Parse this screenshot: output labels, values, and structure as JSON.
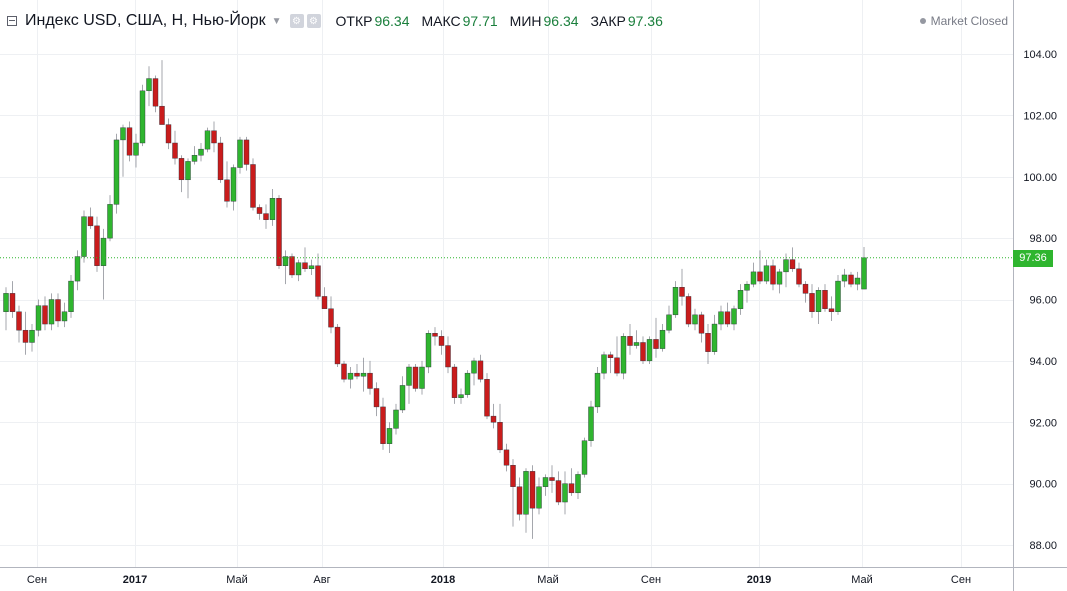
{
  "header": {
    "title": "Индекс USD, США, H, Нью-Йорк",
    "ohlc": [
      {
        "label": "ОТКР",
        "value": "96.34"
      },
      {
        "label": "МАКС",
        "value": "97.71"
      },
      {
        "label": "МИН",
        "value": "96.34"
      },
      {
        "label": "ЗАКР",
        "value": "97.36"
      }
    ],
    "icons": [
      "gear-icon",
      "settings-icon"
    ],
    "market_status": "Market Closed"
  },
  "colors": {
    "up": "#2fb52f",
    "down": "#c91c1c",
    "wick": "#5d606b",
    "grid": "#eef0f3",
    "axis_text": "#131722",
    "last_price_line": "#2fb52f"
  },
  "chart_data": {
    "type": "candlestick",
    "title": "Индекс USD, США, H, Нью-Йорк",
    "last_price": {
      "value": 97.36,
      "label": "97.36"
    },
    "y_ticks": [
      "88.00",
      "90.00",
      "92.00",
      "94.00",
      "96.00",
      "98.00",
      "100.00",
      "102.00",
      "104.00"
    ],
    "x_ticks": [
      {
        "label": "Сен",
        "bold": false
      },
      {
        "label": "2017",
        "bold": true
      },
      {
        "label": "Май",
        "bold": false
      },
      {
        "label": "Авг",
        "bold": false
      },
      {
        "label": "2018",
        "bold": true
      },
      {
        "label": "Май",
        "bold": false
      },
      {
        "label": "Сен",
        "bold": false
      },
      {
        "label": "2019",
        "bold": true
      },
      {
        "label": "Май",
        "bold": false
      },
      {
        "label": "Сен",
        "bold": false
      }
    ],
    "grid": true,
    "candles_ohlc": [
      [
        95.6,
        96.4,
        95.0,
        96.2
      ],
      [
        96.2,
        96.6,
        95.4,
        95.6
      ],
      [
        95.6,
        95.8,
        94.6,
        95.0
      ],
      [
        95.0,
        95.6,
        94.2,
        94.6
      ],
      [
        94.6,
        95.2,
        94.3,
        95.0
      ],
      [
        95.0,
        96.0,
        94.8,
        95.8
      ],
      [
        95.8,
        96.1,
        95.0,
        95.2
      ],
      [
        95.2,
        96.2,
        95.0,
        96.0
      ],
      [
        96.0,
        96.2,
        95.1,
        95.3
      ],
      [
        95.3,
        95.9,
        95.1,
        95.6
      ],
      [
        95.6,
        96.8,
        95.4,
        96.6
      ],
      [
        96.6,
        97.6,
        96.3,
        97.4
      ],
      [
        97.4,
        98.9,
        97.2,
        98.7
      ],
      [
        98.7,
        99.0,
        98.3,
        98.4
      ],
      [
        98.4,
        98.7,
        96.9,
        97.1
      ],
      [
        97.1,
        98.3,
        96.0,
        98.0
      ],
      [
        98.0,
        99.4,
        97.9,
        99.1
      ],
      [
        99.1,
        101.4,
        98.8,
        101.2
      ],
      [
        101.2,
        101.7,
        100.0,
        101.6
      ],
      [
        101.6,
        101.8,
        100.5,
        100.7
      ],
      [
        100.7,
        101.4,
        100.3,
        101.1
      ],
      [
        101.1,
        103.0,
        101.0,
        102.8
      ],
      [
        102.8,
        103.6,
        102.3,
        103.2
      ],
      [
        103.2,
        103.3,
        102.1,
        102.3
      ],
      [
        102.3,
        103.8,
        101.8,
        101.7
      ],
      [
        101.7,
        101.9,
        100.9,
        101.1
      ],
      [
        101.1,
        101.5,
        100.4,
        100.6
      ],
      [
        100.6,
        100.7,
        99.5,
        99.9
      ],
      [
        99.9,
        100.6,
        99.3,
        100.5
      ],
      [
        100.5,
        101.0,
        100.4,
        100.7
      ],
      [
        100.7,
        101.1,
        100.5,
        100.9
      ],
      [
        100.9,
        101.6,
        100.8,
        101.5
      ],
      [
        101.5,
        101.8,
        100.8,
        101.1
      ],
      [
        101.1,
        101.3,
        99.8,
        99.9
      ],
      [
        99.9,
        100.5,
        99.0,
        99.2
      ],
      [
        99.2,
        100.4,
        98.9,
        100.3
      ],
      [
        100.3,
        101.3,
        100.1,
        101.2
      ],
      [
        101.2,
        101.3,
        100.2,
        100.4
      ],
      [
        100.4,
        100.6,
        98.9,
        99.0
      ],
      [
        99.0,
        99.1,
        98.6,
        98.8
      ],
      [
        98.8,
        99.1,
        98.3,
        98.6
      ],
      [
        98.6,
        99.6,
        98.4,
        99.3
      ],
      [
        99.3,
        99.4,
        97.0,
        97.1
      ],
      [
        97.1,
        97.6,
        96.5,
        97.4
      ],
      [
        97.4,
        97.5,
        96.7,
        96.8
      ],
      [
        96.8,
        97.3,
        96.6,
        97.2
      ],
      [
        97.2,
        97.7,
        96.9,
        97.0
      ],
      [
        97.0,
        97.3,
        96.8,
        97.1
      ],
      [
        97.1,
        97.5,
        96.0,
        96.1
      ],
      [
        96.1,
        96.4,
        95.8,
        95.7
      ],
      [
        95.7,
        96.1,
        94.9,
        95.1
      ],
      [
        95.1,
        95.2,
        93.8,
        93.9
      ],
      [
        93.9,
        94.0,
        93.3,
        93.4
      ],
      [
        93.4,
        93.8,
        93.1,
        93.6
      ],
      [
        93.6,
        93.9,
        93.4,
        93.5
      ],
      [
        93.5,
        94.1,
        93.0,
        93.6
      ],
      [
        93.6,
        94.0,
        92.9,
        93.1
      ],
      [
        93.1,
        93.3,
        92.2,
        92.5
      ],
      [
        92.5,
        92.8,
        91.1,
        91.3
      ],
      [
        91.3,
        92.0,
        91.0,
        91.8
      ],
      [
        91.8,
        92.6,
        91.6,
        92.4
      ],
      [
        92.4,
        93.5,
        92.3,
        93.2
      ],
      [
        93.2,
        93.9,
        92.6,
        93.8
      ],
      [
        93.8,
        93.9,
        93.0,
        93.1
      ],
      [
        93.1,
        94.0,
        92.9,
        93.8
      ],
      [
        93.8,
        95.0,
        93.6,
        94.9
      ],
      [
        94.9,
        95.1,
        94.5,
        94.8
      ],
      [
        94.8,
        95.0,
        94.2,
        94.5
      ],
      [
        94.5,
        94.8,
        93.6,
        93.8
      ],
      [
        93.8,
        93.9,
        92.6,
        92.8
      ],
      [
        92.8,
        93.1,
        92.6,
        92.9
      ],
      [
        92.9,
        93.7,
        92.8,
        93.6
      ],
      [
        93.6,
        94.1,
        93.2,
        94.0
      ],
      [
        94.0,
        94.2,
        93.3,
        93.4
      ],
      [
        93.4,
        93.6,
        92.1,
        92.2
      ],
      [
        92.2,
        92.6,
        91.8,
        92.0
      ],
      [
        92.0,
        92.6,
        91.0,
        91.1
      ],
      [
        91.1,
        91.3,
        90.4,
        90.6
      ],
      [
        90.6,
        90.8,
        88.6,
        89.9
      ],
      [
        89.9,
        90.2,
        88.8,
        89.0
      ],
      [
        89.0,
        90.5,
        88.4,
        90.4
      ],
      [
        90.4,
        90.6,
        88.2,
        89.2
      ],
      [
        89.2,
        90.2,
        89.0,
        89.9
      ],
      [
        89.9,
        90.3,
        89.6,
        90.2
      ],
      [
        90.2,
        90.6,
        89.7,
        90.1
      ],
      [
        90.1,
        90.4,
        89.3,
        89.4
      ],
      [
        89.4,
        90.4,
        89.0,
        90.0
      ],
      [
        90.0,
        90.5,
        89.6,
        89.7
      ],
      [
        89.7,
        90.4,
        89.5,
        90.3
      ],
      [
        90.3,
        91.5,
        90.2,
        91.4
      ],
      [
        91.4,
        92.7,
        91.2,
        92.5
      ],
      [
        92.5,
        93.8,
        92.3,
        93.6
      ],
      [
        93.6,
        94.3,
        93.4,
        94.2
      ],
      [
        94.2,
        94.3,
        93.6,
        94.1
      ],
      [
        94.1,
        94.8,
        93.5,
        93.6
      ],
      [
        93.6,
        94.9,
        93.4,
        94.8
      ],
      [
        94.8,
        95.2,
        94.2,
        94.5
      ],
      [
        94.5,
        95.0,
        94.4,
        94.6
      ],
      [
        94.6,
        94.8,
        93.9,
        94.0
      ],
      [
        94.0,
        94.8,
        93.9,
        94.7
      ],
      [
        94.7,
        95.4,
        94.1,
        94.4
      ],
      [
        94.4,
        95.2,
        94.3,
        95.0
      ],
      [
        95.0,
        95.8,
        94.9,
        95.5
      ],
      [
        95.5,
        96.6,
        95.4,
        96.4
      ],
      [
        96.4,
        97.0,
        95.8,
        96.1
      ],
      [
        96.1,
        96.2,
        95.1,
        95.2
      ],
      [
        95.2,
        95.7,
        95.0,
        95.5
      ],
      [
        95.5,
        95.6,
        94.6,
        94.9
      ],
      [
        94.9,
        95.2,
        93.9,
        94.3
      ],
      [
        94.3,
        95.5,
        94.2,
        95.2
      ],
      [
        95.2,
        95.8,
        95.0,
        95.6
      ],
      [
        95.6,
        95.9,
        95.1,
        95.2
      ],
      [
        95.2,
        95.8,
        95.0,
        95.7
      ],
      [
        95.7,
        96.5,
        95.5,
        96.3
      ],
      [
        96.3,
        96.6,
        95.9,
        96.5
      ],
      [
        96.5,
        97.2,
        96.4,
        96.9
      ],
      [
        96.9,
        97.6,
        96.5,
        96.6
      ],
      [
        96.6,
        97.3,
        96.5,
        97.1
      ],
      [
        97.1,
        97.3,
        96.3,
        96.5
      ],
      [
        96.5,
        97.0,
        96.2,
        96.9
      ],
      [
        96.9,
        97.5,
        96.4,
        97.3
      ],
      [
        97.3,
        97.7,
        96.9,
        97.0
      ],
      [
        97.0,
        97.2,
        96.4,
        96.5
      ],
      [
        96.5,
        96.6,
        95.9,
        96.2
      ],
      [
        96.2,
        96.5,
        95.4,
        95.6
      ],
      [
        95.6,
        96.4,
        95.2,
        96.3
      ],
      [
        96.3,
        96.5,
        95.6,
        95.7
      ],
      [
        95.7,
        96.1,
        95.3,
        95.6
      ],
      [
        95.6,
        96.8,
        95.5,
        96.6
      ],
      [
        96.6,
        97.0,
        96.4,
        96.8
      ],
      [
        96.8,
        96.9,
        96.4,
        96.5
      ],
      [
        96.5,
        96.9,
        96.3,
        96.7
      ],
      [
        96.34,
        97.71,
        96.34,
        97.36
      ]
    ]
  }
}
